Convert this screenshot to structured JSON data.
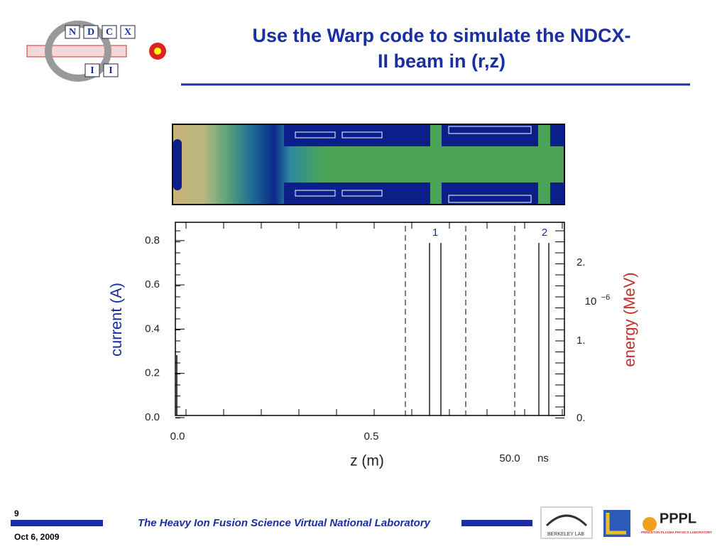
{
  "header": {
    "title": "Use the Warp code to simulate the NDCX-II beam in (r,z)",
    "logo": {
      "row1": [
        "N",
        "D",
        "C",
        "X"
      ],
      "row2": [
        "I",
        "I"
      ]
    }
  },
  "plot": {
    "y_axis_label": "current (A)",
    "y2_axis_label": "energy (MeV)",
    "x_axis_label": "z (m)",
    "y_tick_labels": [
      "0.0",
      "0.2",
      "0.4",
      "0.6",
      "0.8"
    ],
    "x_tick_labels": [
      "0.0",
      "0.5"
    ],
    "y2_tick_labels": [
      "0.",
      "1.",
      "2."
    ],
    "y2_multiplier": "10",
    "y2_exponent": "−6",
    "time": "50.0",
    "time_unit": "ns",
    "markers": [
      "1",
      "2"
    ]
  },
  "footer": {
    "page": "9",
    "date": "Oct 6, 2009",
    "lab": "The Heavy Ion Fusion Science Virtual National Laboratory",
    "logos": {
      "berkeley": "BERKELEY LAB",
      "pppl": "PPPL",
      "pppl_sub": "PRINCETON PLASMA PHYSICS LABORATORY"
    }
  }
}
